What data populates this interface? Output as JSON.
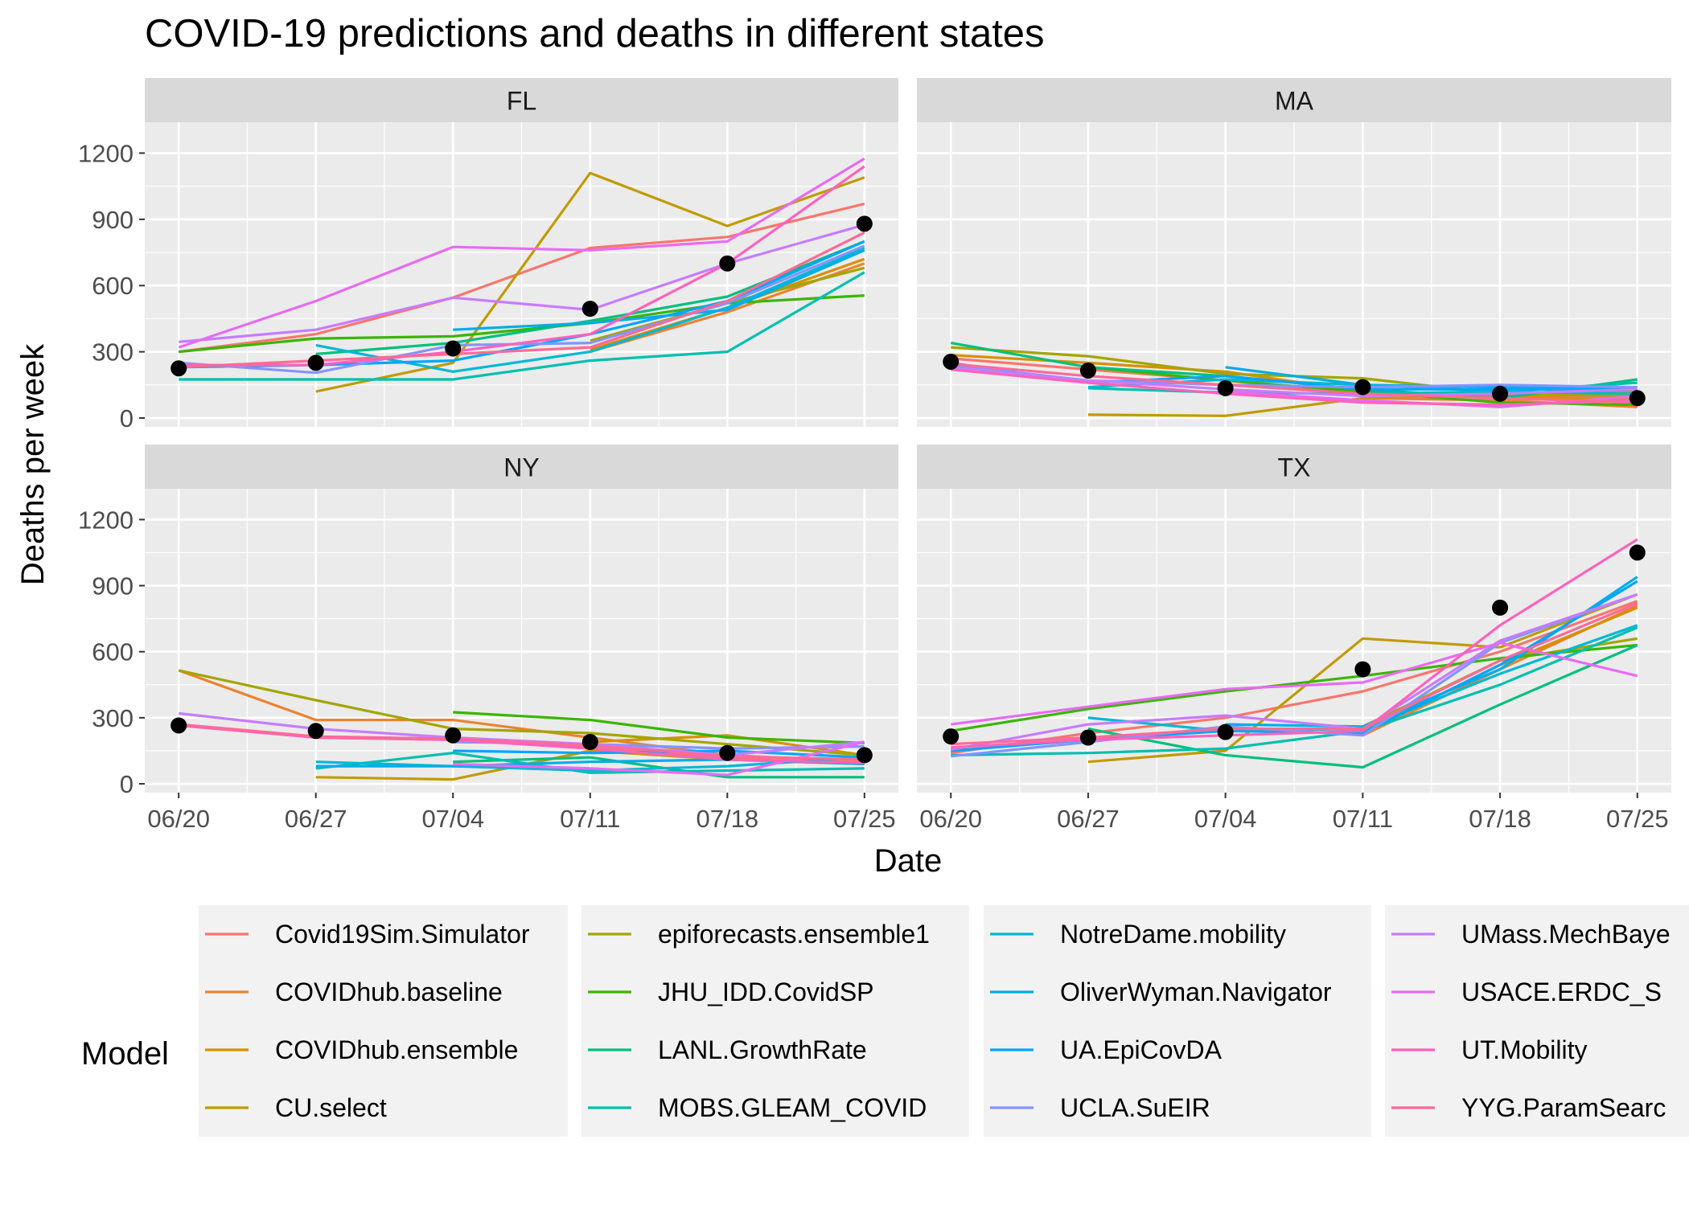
{
  "chart_data": {
    "type": "line",
    "title": "COVID-19 predictions and deaths in different states",
    "xlabel": "Date",
    "ylabel": "Deaths per week",
    "x": [
      "06/20",
      "06/27",
      "07/04",
      "07/11",
      "07/18",
      "07/25"
    ],
    "y_ticks": [
      0,
      300,
      600,
      900,
      1200
    ],
    "ylim": [
      -40,
      1200
    ],
    "grid": true,
    "legend": {
      "title": "Model",
      "position": "bottom",
      "columns": [
        [
          "Covid19Sim.Simulator",
          "COVIDhub.baseline",
          "COVIDhub.ensemble",
          "CU.select"
        ],
        [
          "epiforecasts.ensemble1",
          "JHU_IDD.CovidSP",
          "LANL.GrowthRate",
          "MOBS.GLEAM_COVID"
        ],
        [
          "NotreDame.mobility",
          "OliverWyman.Navigator",
          "UA.EpiCovDA",
          "UCLA.SuEIR"
        ],
        [
          "UMass.MechBaye",
          "USACE.ERDC_S",
          "UT.Mobility",
          "YYG.ParamSearc"
        ]
      ]
    },
    "colors": {
      "Covid19Sim.Simulator": "#F8766D",
      "COVIDhub.baseline": "#EA8331",
      "COVIDhub.ensemble": "#D89000",
      "CU.select": "#C09B00",
      "epiforecasts.ensemble1": "#A3A500",
      "JHU_IDD.CovidSP": "#39B600",
      "LANL.GrowthRate": "#00BF7D",
      "MOBS.GLEAM_COVID": "#00BFAF",
      "NotreDame.mobility": "#00B8D4",
      "OliverWyman.Navigator": "#00ADE8",
      "UA.EpiCovDA": "#00A5FF",
      "UCLA.SuEIR": "#8494FF",
      "UMass.MechBayes": "#C77CFF",
      "USACE.ERDC_SEIR": "#E76BF3",
      "UT.Mobility": "#FF62BC",
      "YYG.ParamSearch": "#FF6A98",
      "observed": "#000000"
    },
    "panels": [
      {
        "state": "FL",
        "observed": [
          225,
          250,
          315,
          495,
          700,
          880
        ],
        "series": [
          {
            "name": "Covid19Sim.Simulator",
            "values": [
              300,
              380,
              545,
              770,
              820,
              970
            ]
          },
          {
            "name": "COVIDhub.baseline",
            "values": [
              null,
              null,
              null,
              300,
              480,
              700
            ]
          },
          {
            "name": "COVIDhub.ensemble",
            "values": [
              null,
              null,
              null,
              310,
              500,
              720
            ]
          },
          {
            "name": "CU.select",
            "values": [
              null,
              120,
              250,
              1110,
              870,
              1090
            ]
          },
          {
            "name": "epiforecasts.ensemble1",
            "values": [
              null,
              null,
              null,
              350,
              520,
              680
            ]
          },
          {
            "name": "JHU_IDD.CovidSP",
            "values": [
              300,
              360,
              370,
              430,
              520,
              555
            ]
          },
          {
            "name": "LANL.GrowthRate",
            "values": [
              null,
              290,
              340,
              440,
              550,
              800
            ]
          },
          {
            "name": "MOBS.GLEAM_COVID",
            "values": [
              175,
              175,
              175,
              260,
              300,
              660
            ]
          },
          {
            "name": "NotreDame.mobility",
            "values": [
              null,
              330,
              210,
              300,
              500,
              770
            ]
          },
          {
            "name": "OliverWyman.Navigator",
            "values": [
              null,
              null,
              400,
              430,
              490,
              760
            ]
          },
          {
            "name": "UA.EpiCovDA",
            "values": [
              230,
              240,
              260,
              380,
              530,
              800
            ]
          },
          {
            "name": "UCLA.SuEIR",
            "values": [
              250,
              205,
              330,
              340,
              520,
              780
            ]
          },
          {
            "name": "UMass.MechBayes",
            "values": [
              345,
              400,
              545,
              490,
              700,
              875
            ]
          },
          {
            "name": "USACE.ERDC_SEIR",
            "values": [
              320,
              530,
              775,
              760,
              800,
              1175
            ]
          },
          {
            "name": "UT.Mobility",
            "values": [
              240,
              240,
              300,
              380,
              700,
              1140
            ]
          },
          {
            "name": "YYG.ParamSearch",
            "values": [
              230,
              260,
              290,
              320,
              530,
              840
            ]
          }
        ]
      },
      {
        "state": "MA",
        "observed": [
          255,
          215,
          135,
          140,
          110,
          90
        ],
        "series": [
          {
            "name": "Covid19Sim.Simulator",
            "values": [
              270,
              220,
              170,
              110,
              100,
              90
            ]
          },
          {
            "name": "COVIDhub.baseline",
            "values": [
              null,
              null,
              null,
              90,
              80,
              50
            ]
          },
          {
            "name": "COVIDhub.ensemble",
            "values": [
              285,
              250,
              210,
              120,
              100,
              80
            ]
          },
          {
            "name": "CU.select",
            "values": [
              null,
              15,
              10,
              90,
              110,
              120
            ]
          },
          {
            "name": "epiforecasts.ensemble1",
            "values": [
              320,
              280,
              200,
              180,
              110,
              100
            ]
          },
          {
            "name": "JHU_IDD.CovidSP",
            "values": [
              null,
              230,
              170,
              120,
              70,
              60
            ]
          },
          {
            "name": "LANL.GrowthRate",
            "values": [
              340,
              230,
              190,
              130,
              90,
              175
            ]
          },
          {
            "name": "MOBS.GLEAM_COVID",
            "values": [
              null,
              135,
              115,
              110,
              120,
              160
            ]
          },
          {
            "name": "NotreDame.mobility",
            "values": [
              null,
              140,
              175,
              150,
              120,
              110
            ]
          },
          {
            "name": "OliverWyman.Navigator",
            "values": [
              null,
              null,
              230,
              150,
              140,
              130
            ]
          },
          {
            "name": "UA.EpiCovDA",
            "values": [
              250,
              160,
              190,
              130,
              130,
              130
            ]
          },
          {
            "name": "UCLA.SuEIR",
            "values": [
              240,
              170,
              150,
              140,
              150,
              140
            ]
          },
          {
            "name": "UMass.MechBayes",
            "values": [
              230,
              170,
              130,
              100,
              110,
              130
            ]
          },
          {
            "name": "USACE.ERDC_SEIR",
            "values": [
              null,
              null,
              120,
              80,
              50,
              100
            ]
          },
          {
            "name": "UT.Mobility",
            "values": [
              220,
              160,
              110,
              70,
              60,
              80
            ]
          },
          {
            "name": "YYG.ParamSearch",
            "values": [
              245,
              190,
              150,
              110,
              90,
              70
            ]
          }
        ]
      },
      {
        "state": "NY",
        "observed": [
          265,
          240,
          220,
          190,
          140,
          130
        ],
        "series": [
          {
            "name": "Covid19Sim.Simulator",
            "values": [
              270,
              210,
              200,
              170,
              120,
              110
            ]
          },
          {
            "name": "COVIDhub.baseline",
            "values": [
              515,
              290,
              290,
              210,
              130,
              100
            ]
          },
          {
            "name": "COVIDhub.ensemble",
            "values": [
              null,
              null,
              null,
              190,
              220,
              130
            ]
          },
          {
            "name": "CU.select",
            "values": [
              null,
              30,
              20,
              150,
              110,
              90
            ]
          },
          {
            "name": "epiforecasts.ensemble1",
            "values": [
              515,
              380,
              250,
              230,
              180,
              130
            ]
          },
          {
            "name": "JHU_IDD.CovidSP",
            "values": [
              null,
              null,
              325,
              290,
              210,
              185
            ]
          },
          {
            "name": "LANL.GrowthRate",
            "values": [
              null,
              null,
              100,
              120,
              30,
              30
            ]
          },
          {
            "name": "MOBS.GLEAM_COVID",
            "values": [
              null,
              70,
              140,
              50,
              60,
              70
            ]
          },
          {
            "name": "NotreDame.mobility",
            "values": [
              null,
              100,
              80,
              60,
              80,
              120
            ]
          },
          {
            "name": "OliverWyman.Navigator",
            "values": [
              null,
              80,
              80,
              100,
              110,
              90
            ]
          },
          {
            "name": "UA.EpiCovDA",
            "values": [
              null,
              null,
              150,
              140,
              150,
              120
            ]
          },
          {
            "name": "UCLA.SuEIR",
            "values": [
              null,
              null,
              190,
              180,
              160,
              170
            ]
          },
          {
            "name": "UMass.MechBayes",
            "values": [
              320,
              250,
              210,
              180,
              130,
              190
            ]
          },
          {
            "name": "USACE.ERDC_SEIR",
            "values": [
              null,
              null,
              90,
              70,
              40,
              190
            ]
          },
          {
            "name": "UT.Mobility",
            "values": [
              265,
              210,
              200,
              160,
              110,
              95
            ]
          },
          {
            "name": "YYG.ParamSearch",
            "values": [
              270,
              215,
              205,
              175,
              125,
              110
            ]
          }
        ]
      },
      {
        "state": "TX",
        "observed": [
          215,
          210,
          235,
          520,
          800,
          1050
        ],
        "series": [
          {
            "name": "Covid19Sim.Simulator",
            "values": [
              140,
              230,
              300,
              420,
              600,
              830
            ]
          },
          {
            "name": "COVIDhub.baseline",
            "values": [
              null,
              null,
              null,
              220,
              520,
              810
            ]
          },
          {
            "name": "COVIDhub.ensemble",
            "values": [
              null,
              null,
              null,
              230,
              540,
              800
            ]
          },
          {
            "name": "CU.select",
            "values": [
              null,
              100,
              150,
              660,
              620,
              860
            ]
          },
          {
            "name": "epiforecasts.ensemble1",
            "values": [
              null,
              null,
              null,
              260,
              560,
              660
            ]
          },
          {
            "name": "JHU_IDD.CovidSP",
            "values": [
              240,
              340,
              420,
              490,
              570,
              630
            ]
          },
          {
            "name": "LANL.GrowthRate",
            "values": [
              null,
              250,
              130,
              75,
              360,
              630
            ]
          },
          {
            "name": "MOBS.GLEAM_COVID",
            "values": [
              130,
              140,
              160,
              240,
              450,
              710
            ]
          },
          {
            "name": "NotreDame.mobility",
            "values": [
              null,
              300,
              240,
              250,
              500,
              720
            ]
          },
          {
            "name": "OliverWyman.Navigator",
            "values": [
              null,
              null,
              270,
              260,
              520,
              940
            ]
          },
          {
            "name": "UA.EpiCovDA",
            "values": [
              150,
              200,
              240,
              230,
              540,
              920
            ]
          },
          {
            "name": "UCLA.SuEIR",
            "values": [
              125,
              190,
              260,
              220,
              640,
              860
            ]
          },
          {
            "name": "UMass.MechBayes",
            "values": [
              155,
              270,
              310,
              250,
              650,
              860
            ]
          },
          {
            "name": "USACE.ERDC_SEIR",
            "values": [
              270,
              350,
              430,
              460,
              640,
              490
            ]
          },
          {
            "name": "UT.Mobility",
            "values": [
              165,
              200,
              220,
              240,
              720,
              1110
            ]
          },
          {
            "name": "YYG.ParamSearch",
            "values": [
              180,
              210,
              250,
              250,
              560,
              820
            ]
          }
        ]
      }
    ]
  }
}
